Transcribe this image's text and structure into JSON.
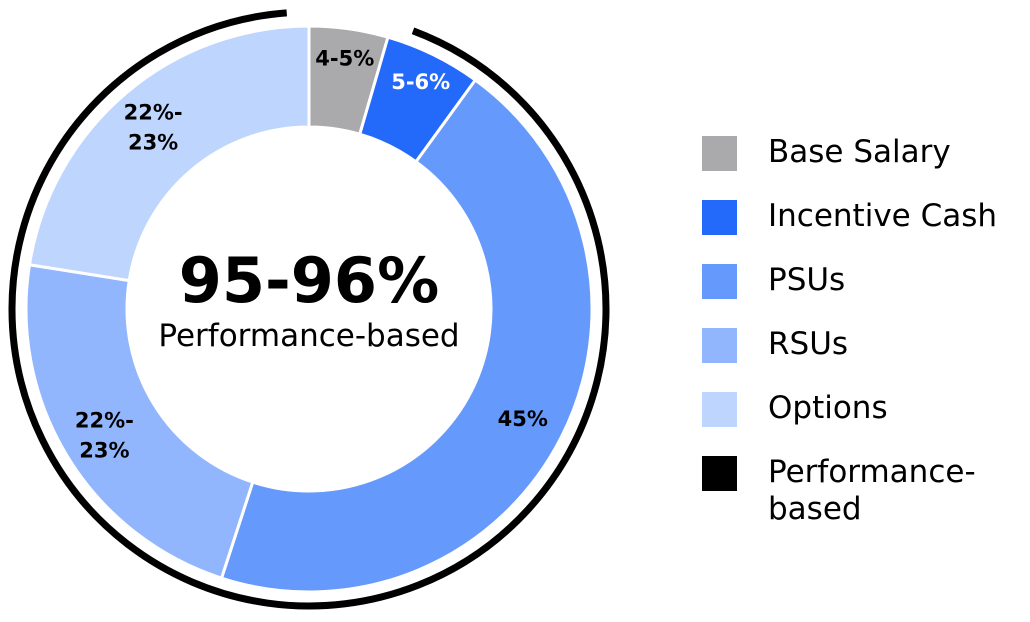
{
  "chart_data": {
    "type": "donut",
    "title": "",
    "center": {
      "value": "95-96%",
      "label": "Performance-based"
    },
    "categories": [
      "Base Salary",
      "Incentive Cash",
      "PSUs",
      "RSUs",
      "Options"
    ],
    "values": [
      4.5,
      5.5,
      45,
      22.5,
      22.5
    ],
    "value_labels": [
      "4-5%",
      "5-6%",
      "45%",
      "22%-23%",
      "22%-23%"
    ],
    "colors": [
      "#aaaaac",
      "#2369fa",
      "#6699fc",
      "#92b6fd",
      "#bed6fe"
    ],
    "label_colors": [
      "#000000",
      "#ffffff",
      "#000000",
      "#000000",
      "#000000"
    ],
    "highlight": {
      "label": "Performance-based",
      "color": "#000000",
      "from_category": "Incentive Cash"
    }
  },
  "legend": {
    "position": "right",
    "items": [
      {
        "label": "Base Salary",
        "color": "#aaaaac"
      },
      {
        "label": "Incentive Cash",
        "color": "#2369fa"
      },
      {
        "label": "PSUs",
        "color": "#6699fc"
      },
      {
        "label": "RSUs",
        "color": "#92b6fd"
      },
      {
        "label": "Options",
        "color": "#bed6fe"
      },
      {
        "label": "Performance-based",
        "color": "#000000"
      }
    ]
  }
}
